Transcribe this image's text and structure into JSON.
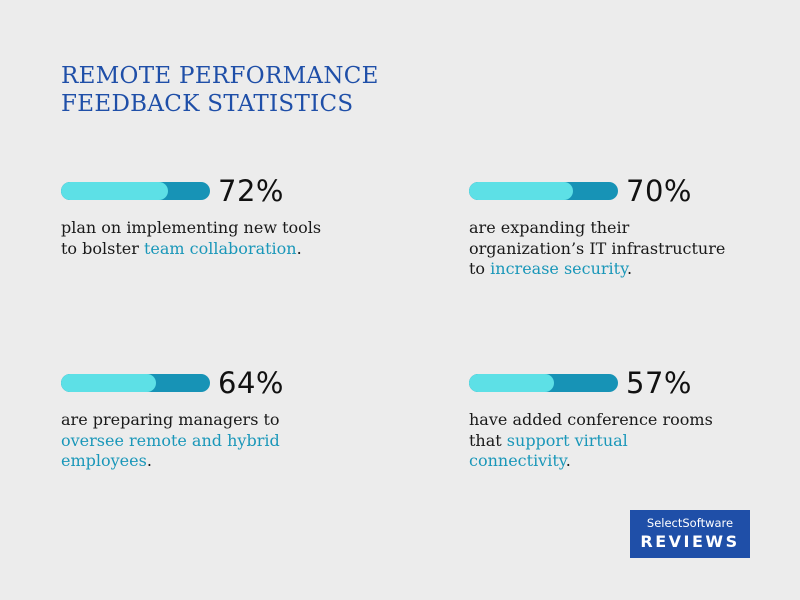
{
  "title": {
    "line1": "REMOTE PERFORMANCE",
    "line2": "FEEDBACK STATISTICS"
  },
  "colors": {
    "title": "#1f4fa8",
    "bar_track": "#1793b6",
    "bar_fill": "#5de0e6",
    "highlight": "#1a97b9",
    "logo_bg": "#1f4fa8"
  },
  "stats": [
    {
      "percent": "72%",
      "bar_fraction": 0.72,
      "text_before": "plan on implementing new tools to bolster ",
      "highlight": "team collaboration",
      "text_after": "."
    },
    {
      "percent": "70%",
      "bar_fraction": 0.7,
      "text_before": "are expanding their organization’s IT infrastructure to ",
      "highlight": "increase security",
      "text_after": "."
    },
    {
      "percent": "64%",
      "bar_fraction": 0.64,
      "text_before": "are preparing managers to ",
      "highlight": "oversee remote and hybrid employees",
      "text_after": "."
    },
    {
      "percent": "57%",
      "bar_fraction": 0.57,
      "text_before": "have added conference rooms that ",
      "highlight": "support virtual connectivity",
      "text_after": "."
    }
  ],
  "logo": {
    "top": "SelectSoftware",
    "bottom": "REVIEWS"
  }
}
